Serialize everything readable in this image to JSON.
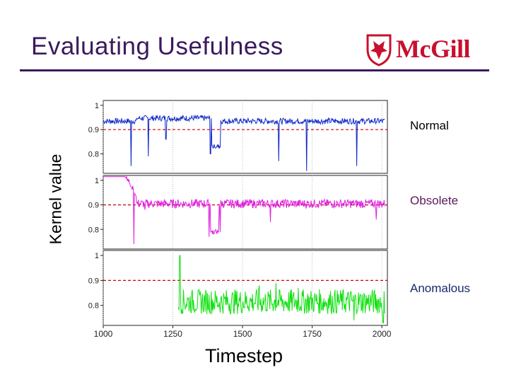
{
  "slide": {
    "title": "Evaluating Usefulness",
    "logo_text": "McGill"
  },
  "colors": {
    "title": "#3a1a5c",
    "logo": "#c8102e",
    "threshold": "#cc0000"
  },
  "chart_data": {
    "type": "line",
    "xlabel": "Timestep",
    "ylabel": "Kernel value",
    "x_ticks": [
      "1000",
      "1250",
      "1500",
      "1750",
      "2000"
    ],
    "xlim": [
      1000,
      2020
    ],
    "threshold": 0.9,
    "panels": [
      {
        "name": "Normal",
        "color": "#1028c8",
        "ylim": [
          0.72,
          1.02
        ],
        "y_ticks": [
          "1",
          "0.9",
          "0.8"
        ],
        "baseline": 0.935,
        "spikes": [
          [
            1100,
            0.75
          ],
          [
            1162,
            0.79
          ],
          [
            1225,
            0.86
          ],
          [
            1385,
            0.8
          ],
          [
            1400,
            0.83
          ],
          [
            1630,
            0.77
          ],
          [
            1730,
            0.73
          ],
          [
            1910,
            0.75
          ]
        ],
        "dropouts": [
          [
            1390,
            1420,
            0.83
          ]
        ]
      },
      {
        "name": "Obsolete",
        "color": "#e020e0",
        "ylim": [
          0.72,
          1.02
        ],
        "y_ticks": [
          "1",
          "0.9",
          "0.8"
        ],
        "baseline": 0.905,
        "spikes": [
          [
            1110,
            0.74
          ],
          [
            1150,
            0.88
          ],
          [
            1380,
            0.77
          ],
          [
            1420,
            0.79
          ],
          [
            1600,
            0.83
          ],
          [
            1980,
            0.84
          ]
        ],
        "dropouts": [
          [
            1385,
            1415,
            0.79
          ]
        ]
      },
      {
        "name": "Anomalous",
        "color": "#10e010",
        "ylim": [
          0.72,
          1.02
        ],
        "y_ticks": [
          "1",
          "0.9",
          "0.8"
        ],
        "baseline": 0.815,
        "start": 1270,
        "spikes": [
          [
            1275,
            1.0
          ],
          [
            1560,
            0.88
          ],
          [
            1620,
            0.89
          ],
          [
            1700,
            0.87
          ],
          [
            1900,
            0.74
          ],
          [
            2005,
            0.73
          ]
        ],
        "dropouts": []
      }
    ]
  }
}
